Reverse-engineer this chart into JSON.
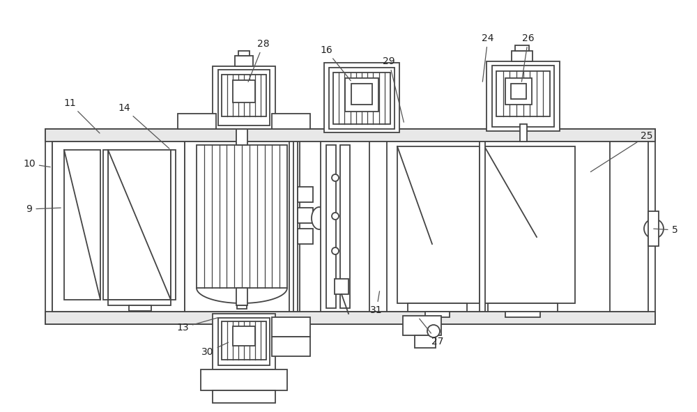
{
  "bg_color": "#ffffff",
  "lc": "#444444",
  "lw": 1.3,
  "annotations": [
    [
      "9",
      42,
      300,
      90,
      298
    ],
    [
      "10",
      42,
      235,
      75,
      240
    ],
    [
      "11",
      100,
      148,
      145,
      193
    ],
    [
      "14",
      178,
      155,
      245,
      215
    ],
    [
      "5",
      968,
      330,
      935,
      328
    ],
    [
      "13",
      262,
      470,
      315,
      455
    ],
    [
      "30",
      298,
      505,
      330,
      490
    ],
    [
      "28",
      378,
      63,
      355,
      120
    ],
    [
      "16",
      468,
      72,
      505,
      118
    ],
    [
      "29",
      558,
      88,
      580,
      178
    ],
    [
      "24",
      700,
      55,
      692,
      120
    ],
    [
      "26",
      758,
      55,
      748,
      120
    ],
    [
      "25",
      928,
      195,
      845,
      248
    ],
    [
      "31",
      540,
      445,
      545,
      415
    ],
    [
      "27",
      628,
      490,
      600,
      455
    ]
  ]
}
